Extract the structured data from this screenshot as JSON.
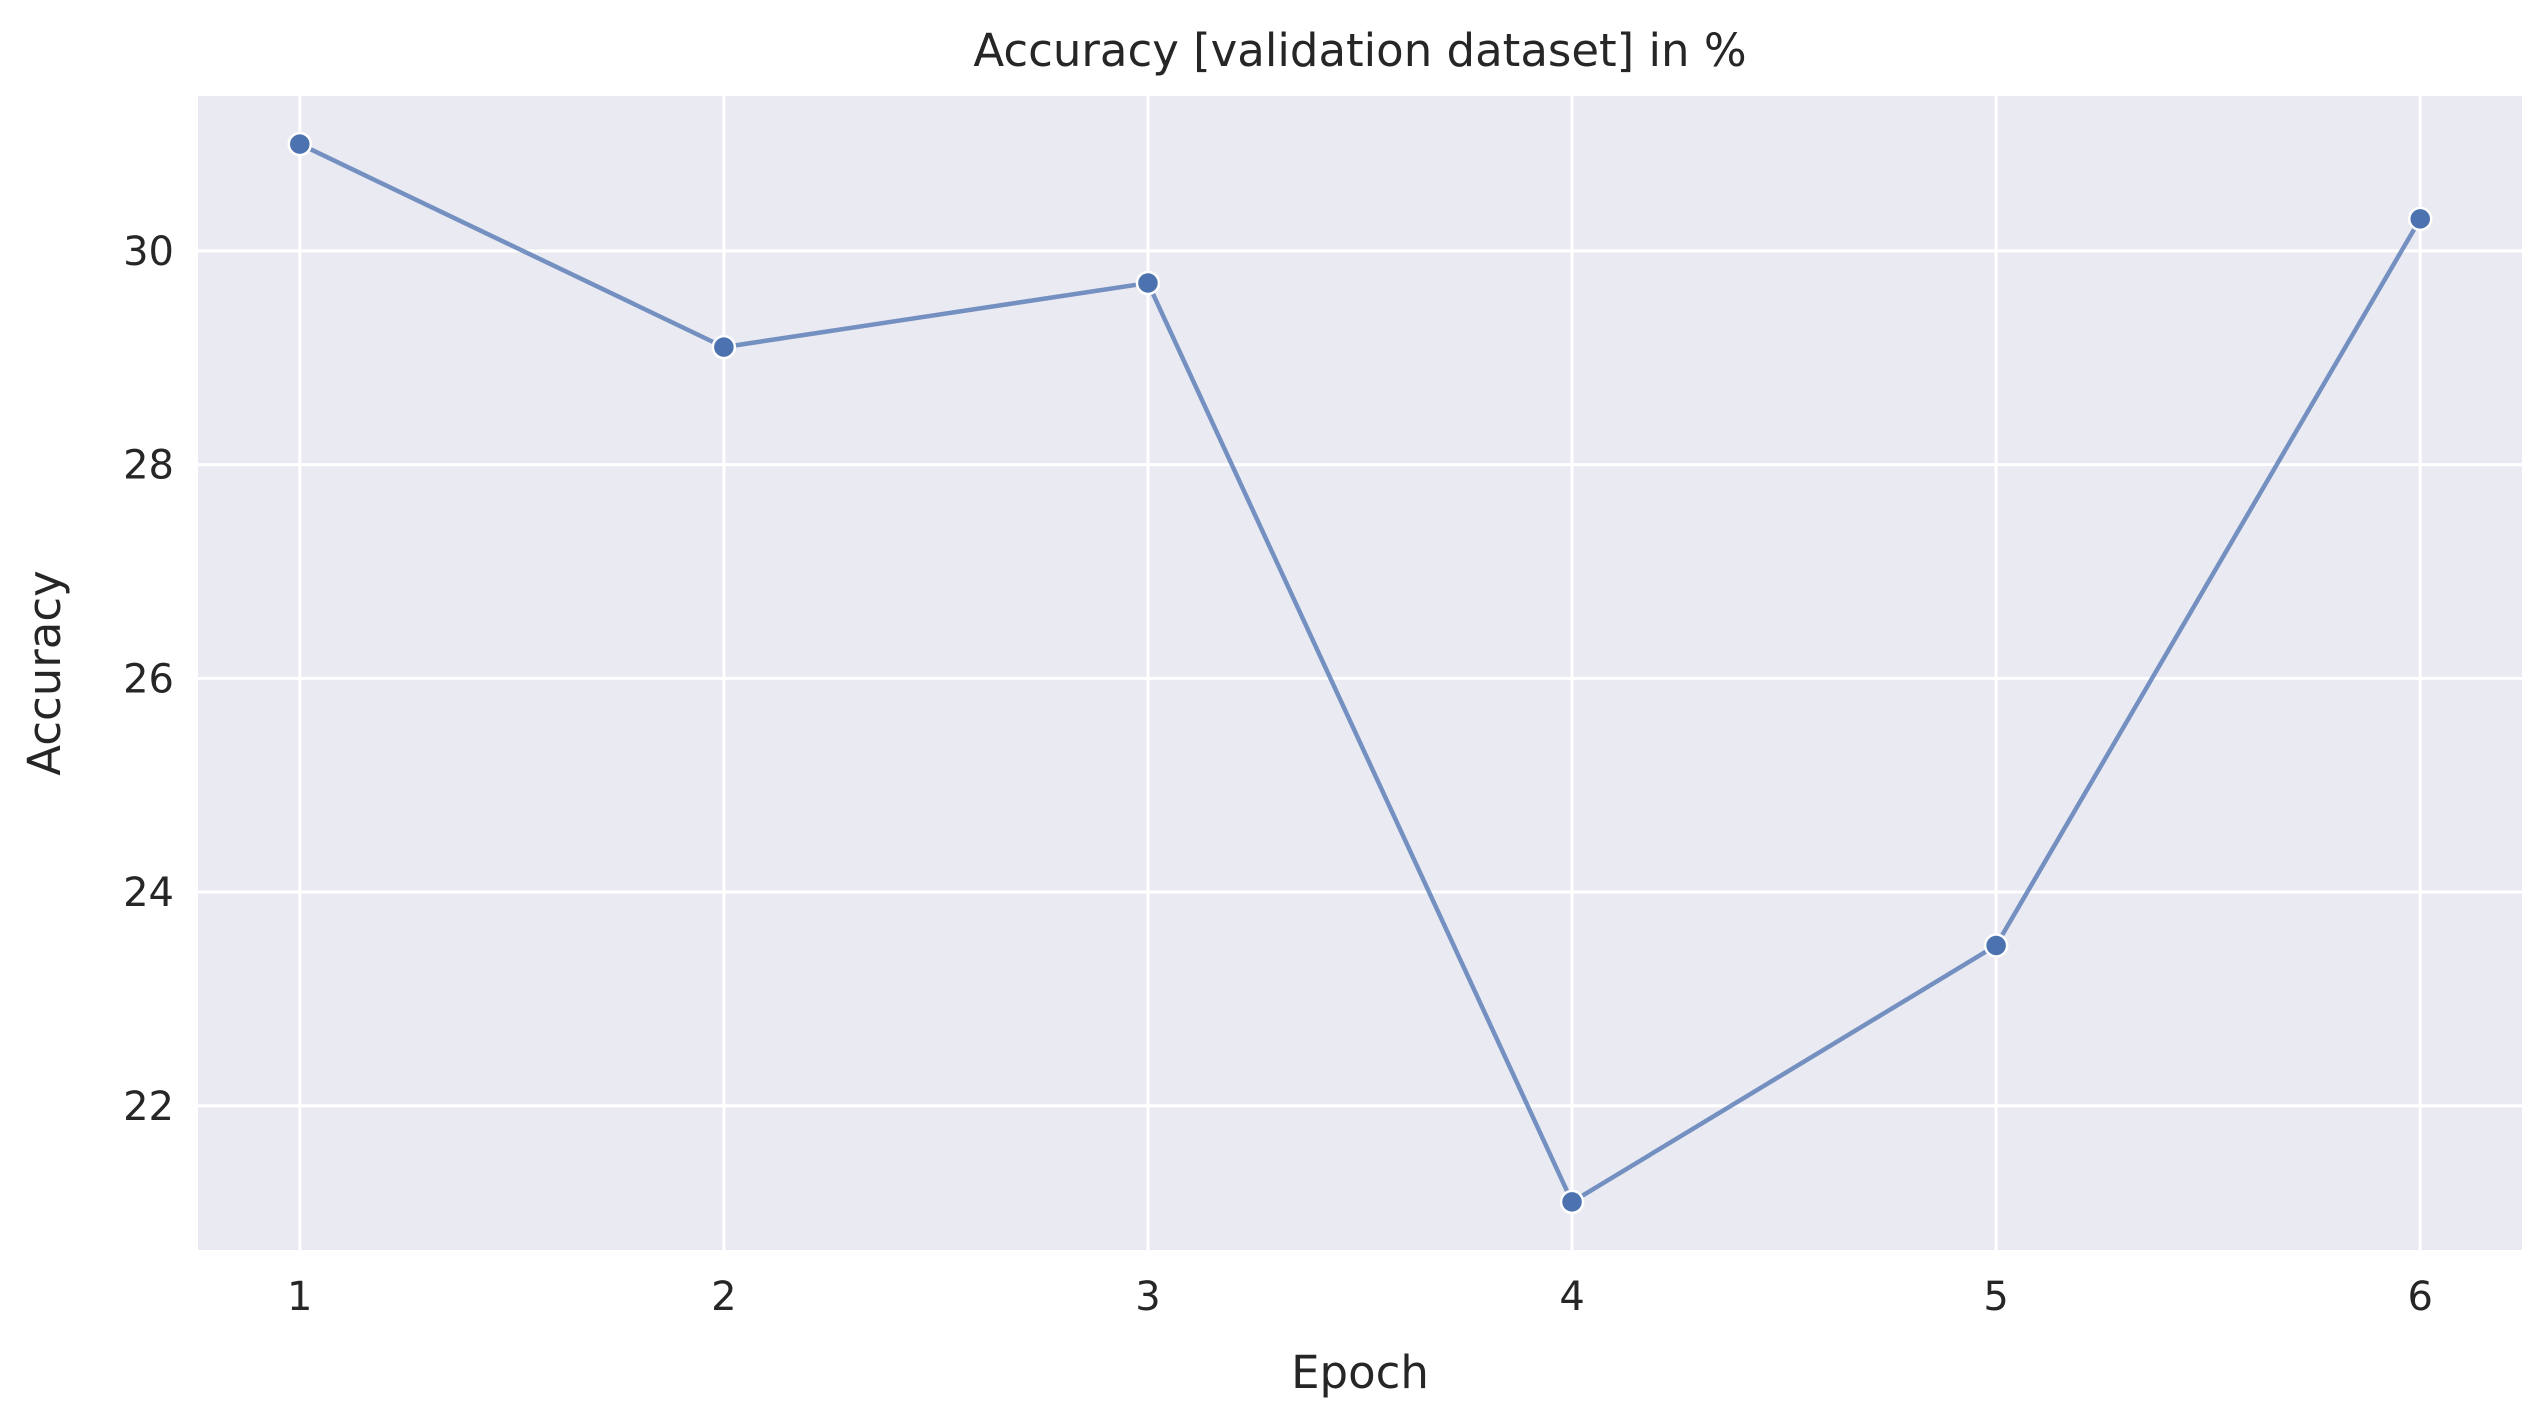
{
  "chart_data": {
    "type": "line",
    "title": "Accuracy [validation dataset] in %",
    "xlabel": "Epoch",
    "ylabel": "Accuracy",
    "x": [
      1,
      2,
      3,
      4,
      5,
      6
    ],
    "x_ticks": [
      "1",
      "2",
      "3",
      "4",
      "5",
      "6"
    ],
    "y_ticks": [
      "22",
      "24",
      "26",
      "28",
      "30"
    ],
    "xlim": [
      0.76,
      6.24
    ],
    "ylim": [
      20.65,
      31.45
    ],
    "grid": true,
    "series": [
      {
        "values": [
          31.0,
          29.1,
          29.7,
          21.1,
          23.5,
          30.3
        ],
        "color": "#4c72b0"
      }
    ],
    "background_color": "#eaeaf2"
  }
}
